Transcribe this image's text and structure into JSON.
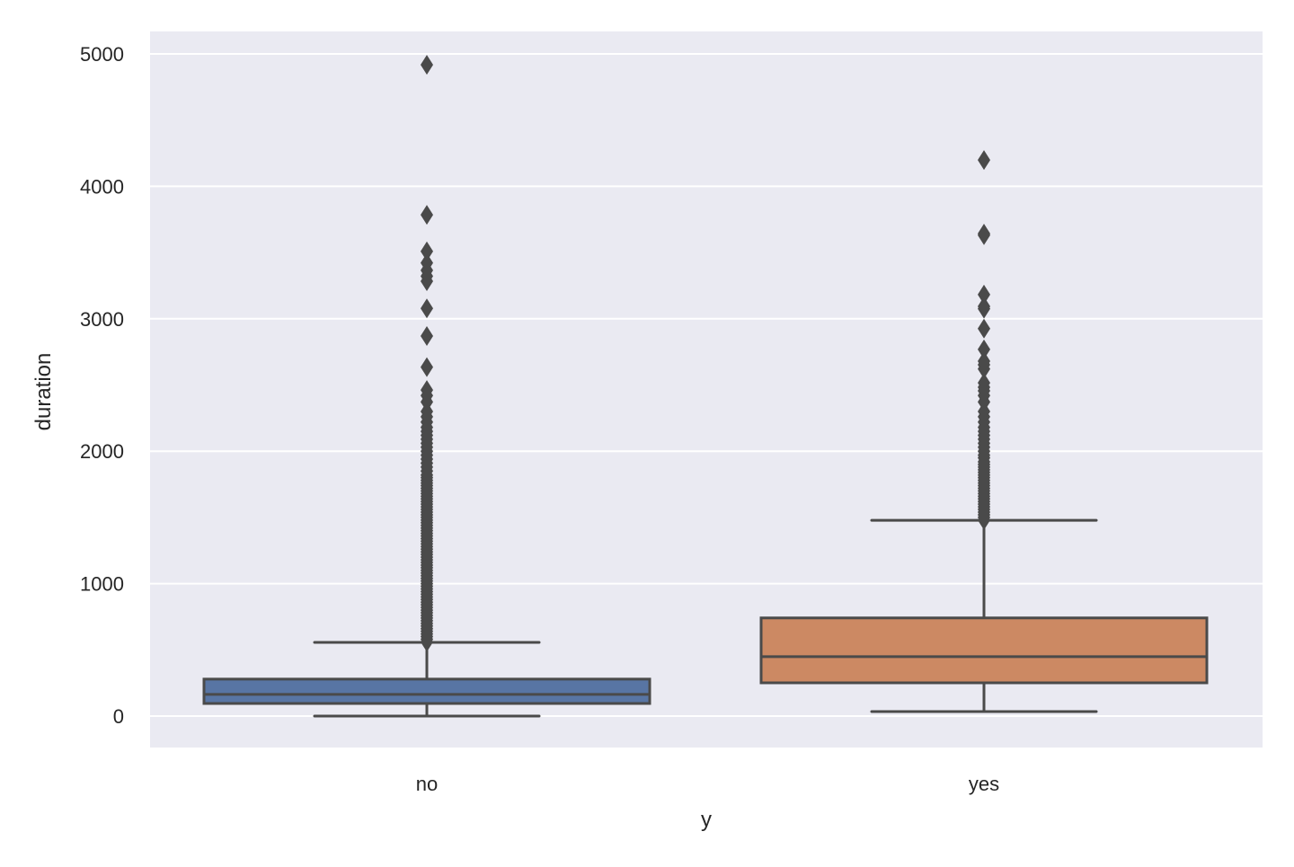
{
  "chart_data": {
    "type": "box",
    "title": "",
    "xlabel": "y",
    "ylabel": "duration",
    "ylim": [
      -240,
      5170
    ],
    "yticks": [
      0,
      1000,
      2000,
      3000,
      4000,
      5000
    ],
    "ytick_labels": [
      "0",
      "1000",
      "2000",
      "3000",
      "4000",
      "5000"
    ],
    "grid": true,
    "categories": [
      "no",
      "yes"
    ],
    "colors": {
      "no": "#5875a4",
      "yes": "#cc8963",
      "lines": "#4a4a4a",
      "background": "#eaeaf2",
      "grid": "#ffffff"
    },
    "series": [
      {
        "name": "no",
        "whisker_low": 0,
        "q1": 95,
        "median": 164,
        "q3": 279,
        "whisker_high": 556,
        "outliers": [
          4918,
          3785,
          3509,
          3422,
          3366,
          3322,
          3284,
          3078,
          2870,
          2635,
          2462,
          2420,
          2372,
          2300,
          2260,
          2220,
          2180,
          2150,
          2120,
          2090,
          2060,
          2030,
          2000,
          1970,
          1940,
          1910,
          1880,
          1850,
          1820,
          1800,
          1780,
          1760,
          1740,
          1720,
          1700,
          1680,
          1660,
          1640,
          1620,
          1600,
          1580,
          1560,
          1540,
          1520,
          1500,
          1480,
          1460,
          1440,
          1420,
          1400,
          1380,
          1360,
          1340,
          1320,
          1300,
          1280,
          1260,
          1240,
          1220,
          1200,
          1180,
          1160,
          1140,
          1120,
          1100,
          1080,
          1060,
          1040,
          1020,
          1000,
          980,
          960,
          940,
          920,
          900,
          880,
          860,
          840,
          820,
          800,
          780,
          760,
          740,
          720,
          700,
          680,
          660,
          640,
          620,
          600,
          580,
          560
        ]
      },
      {
        "name": "yes",
        "whisker_low": 34,
        "q1": 251,
        "median": 449,
        "q3": 741,
        "whisker_high": 1478,
        "outliers": [
          4199,
          3643,
          3631,
          3183,
          3094,
          3076,
          2926,
          2769,
          2680,
          2653,
          2621,
          2516,
          2483,
          2456,
          2420,
          2372,
          2300,
          2260,
          2220,
          2180,
          2150,
          2120,
          2090,
          2060,
          2030,
          2000,
          1970,
          1950,
          1920,
          1900,
          1880,
          1860,
          1840,
          1820,
          1800,
          1780,
          1760,
          1740,
          1720,
          1700,
          1680,
          1660,
          1640,
          1620,
          1600,
          1580,
          1560,
          1540,
          1520,
          1500,
          1480
        ]
      }
    ]
  }
}
